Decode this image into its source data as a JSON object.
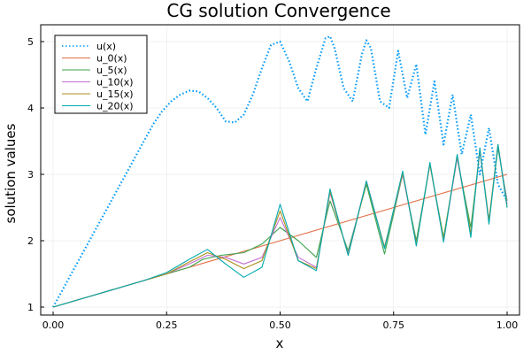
{
  "chart_data": {
    "type": "line",
    "title": "CG solution Convergence",
    "xlabel": "x",
    "ylabel": "solution values",
    "xlim": [
      0,
      1
    ],
    "ylim": [
      0.9,
      5.2
    ],
    "grid": true,
    "legend_position": "top-left",
    "x_ticks": [
      0.0,
      0.25,
      0.5,
      0.75,
      1.0
    ],
    "x_tick_labels": [
      "0.00",
      "0.25",
      "0.50",
      "0.75",
      "1.00"
    ],
    "y_ticks": [
      1,
      2,
      3,
      4,
      5
    ],
    "y_tick_labels": [
      "1",
      "2",
      "3",
      "4",
      "5"
    ],
    "series": [
      {
        "name": "u(x)",
        "color": "#009AFA",
        "dashed": true,
        "x": [
          0,
          0.02,
          0.04,
          0.06,
          0.08,
          0.1,
          0.12,
          0.14,
          0.16,
          0.18,
          0.2,
          0.22,
          0.24,
          0.26,
          0.28,
          0.3,
          0.32,
          0.34,
          0.36,
          0.38,
          0.4,
          0.42,
          0.44,
          0.46,
          0.48,
          0.5,
          0.52,
          0.54,
          0.56,
          0.58,
          0.6,
          0.61,
          0.62,
          0.64,
          0.66,
          0.68,
          0.69,
          0.7,
          0.72,
          0.74,
          0.76,
          0.78,
          0.8,
          0.82,
          0.84,
          0.86,
          0.88,
          0.9,
          0.92,
          0.94,
          0.96,
          0.98,
          1.0
        ],
        "y": [
          1.0,
          1.25,
          1.5,
          1.75,
          2.0,
          2.25,
          2.5,
          2.75,
          3.0,
          3.25,
          3.5,
          3.75,
          3.95,
          4.1,
          4.2,
          4.26,
          4.25,
          4.15,
          4.0,
          3.8,
          3.78,
          3.9,
          4.2,
          4.6,
          4.95,
          5.0,
          4.7,
          4.3,
          4.1,
          4.6,
          5.05,
          5.08,
          4.9,
          4.3,
          4.1,
          4.8,
          5.02,
          4.9,
          4.1,
          4.0,
          4.86,
          4.15,
          4.66,
          3.6,
          4.4,
          3.45,
          4.2,
          3.3,
          3.9,
          3.0,
          3.7,
          2.85,
          2.6
        ]
      },
      {
        "name": "u_0(x)",
        "color": "#E26F46",
        "x": [
          0,
          0.25,
          0.5,
          0.75,
          1.0
        ],
        "y": [
          1.0,
          1.5,
          2.0,
          2.5,
          3.0
        ]
      },
      {
        "name": "u_5(x)",
        "color": "#3DA44D",
        "x": [
          0,
          0.1,
          0.2,
          0.25,
          0.3,
          0.33,
          0.37,
          0.42,
          0.46,
          0.5,
          0.54,
          0.58,
          0.61,
          0.65,
          0.69,
          0.73,
          0.77,
          0.8,
          0.83,
          0.86,
          0.89,
          0.92,
          0.94,
          0.96,
          0.98,
          1.0
        ],
        "y": [
          1.0,
          1.2,
          1.4,
          1.5,
          1.6,
          1.72,
          1.78,
          1.82,
          1.95,
          2.2,
          2.0,
          1.75,
          2.6,
          1.85,
          2.85,
          1.8,
          3.0,
          2.0,
          3.15,
          2.05,
          3.25,
          2.2,
          3.35,
          2.3,
          3.4,
          2.6
        ]
      },
      {
        "name": "u_10(x)",
        "color": "#C271D2",
        "x": [
          0,
          0.1,
          0.2,
          0.25,
          0.3,
          0.34,
          0.38,
          0.42,
          0.46,
          0.5,
          0.54,
          0.58,
          0.61,
          0.65,
          0.69,
          0.73,
          0.77,
          0.8,
          0.83,
          0.86,
          0.89,
          0.92,
          0.94,
          0.96,
          0.98,
          1.0
        ],
        "y": [
          1.0,
          1.2,
          1.4,
          1.5,
          1.65,
          1.78,
          1.75,
          1.65,
          1.75,
          2.35,
          1.75,
          1.6,
          2.72,
          1.8,
          2.9,
          1.9,
          3.0,
          1.95,
          3.15,
          2.0,
          3.25,
          2.1,
          3.35,
          2.3,
          3.45,
          2.55
        ]
      },
      {
        "name": "u_15(x)",
        "color": "#AC8E18",
        "x": [
          0,
          0.1,
          0.2,
          0.25,
          0.3,
          0.34,
          0.38,
          0.42,
          0.46,
          0.5,
          0.54,
          0.58,
          0.61,
          0.65,
          0.69,
          0.73,
          0.77,
          0.8,
          0.83,
          0.86,
          0.89,
          0.92,
          0.94,
          0.96,
          0.98,
          1.0
        ],
        "y": [
          1.0,
          1.2,
          1.4,
          1.5,
          1.68,
          1.82,
          1.72,
          1.58,
          1.7,
          2.45,
          1.7,
          1.58,
          2.75,
          1.78,
          2.88,
          1.9,
          3.02,
          1.95,
          3.15,
          2.02,
          3.28,
          2.1,
          3.38,
          2.3,
          3.45,
          2.5
        ]
      },
      {
        "name": "u_20(x)",
        "color": "#00A9AD",
        "x": [
          0,
          0.1,
          0.2,
          0.25,
          0.3,
          0.34,
          0.38,
          0.42,
          0.46,
          0.5,
          0.54,
          0.58,
          0.61,
          0.65,
          0.69,
          0.73,
          0.77,
          0.8,
          0.83,
          0.86,
          0.89,
          0.92,
          0.94,
          0.96,
          0.98,
          1.0
        ],
        "y": [
          1.0,
          1.2,
          1.4,
          1.52,
          1.72,
          1.87,
          1.65,
          1.45,
          1.6,
          2.55,
          1.7,
          1.55,
          2.78,
          1.78,
          2.9,
          1.88,
          3.05,
          1.92,
          3.18,
          1.98,
          3.3,
          2.05,
          3.4,
          2.25,
          3.45,
          2.5
        ]
      }
    ]
  }
}
